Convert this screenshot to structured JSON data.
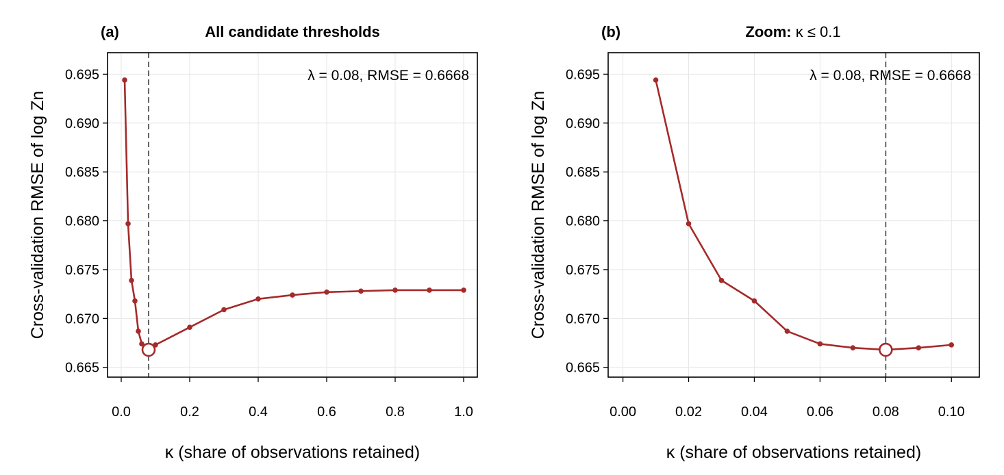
{
  "colors": {
    "series": "#a52a2a",
    "vline": "#555555"
  },
  "chart_data": [
    {
      "type": "line",
      "panel_label": "(a)",
      "title": "All candidate thresholds",
      "annotation": "λ = 0.08, RMSE = 0.6668",
      "xlabel": "κ (share of observations retained)",
      "ylabel": "Cross-validation RMSE of log Zn",
      "xlim": [
        -0.04,
        1.04
      ],
      "ylim": [
        0.664,
        0.6972
      ],
      "x_ticks": [
        0.0,
        0.2,
        0.4,
        0.6,
        0.8,
        1.0
      ],
      "x_tick_labels": [
        "0.0",
        "0.2",
        "0.4",
        "0.6",
        "0.8",
        "1.0"
      ],
      "y_ticks": [
        0.665,
        0.67,
        0.675,
        0.68,
        0.685,
        0.69,
        0.695
      ],
      "y_tick_labels": [
        "0.665",
        "0.670",
        "0.675",
        "0.680",
        "0.685",
        "0.690",
        "0.695"
      ],
      "grid": true,
      "series": [
        {
          "x": [
            0.01,
            0.02,
            0.03,
            0.04,
            0.05,
            0.06,
            0.07,
            0.08,
            0.09,
            0.1,
            0.2,
            0.3,
            0.4,
            0.5,
            0.6,
            0.7,
            0.8,
            0.9,
            1.0
          ],
          "y": [
            0.6944,
            0.6797,
            0.6739,
            0.6718,
            0.6687,
            0.6674,
            0.667,
            0.6668,
            0.667,
            0.6673,
            0.6691,
            0.6709,
            0.672,
            0.6724,
            0.6727,
            0.6728,
            0.6729,
            0.6729,
            0.6729
          ]
        }
      ],
      "selected": {
        "x": 0.08,
        "y": 0.6668
      }
    },
    {
      "type": "line",
      "panel_label": "(b)",
      "title_bold": "Zoom:",
      "title_rest": " κ ≤ 0.1",
      "annotation": "λ = 0.08, RMSE = 0.6668",
      "xlabel": "κ (share of observations retained)",
      "ylabel": "Cross-validation RMSE of log Zn",
      "xlim": [
        -0.0045,
        0.1085
      ],
      "ylim": [
        0.664,
        0.6972
      ],
      "x_ticks": [
        0.0,
        0.02,
        0.04,
        0.06,
        0.08,
        0.1
      ],
      "x_tick_labels": [
        "0.00",
        "0.02",
        "0.04",
        "0.06",
        "0.08",
        "0.10"
      ],
      "y_ticks": [
        0.665,
        0.67,
        0.675,
        0.68,
        0.685,
        0.69,
        0.695
      ],
      "y_tick_labels": [
        "0.665",
        "0.670",
        "0.675",
        "0.680",
        "0.685",
        "0.690",
        "0.695"
      ],
      "grid": true,
      "series": [
        {
          "x": [
            0.01,
            0.02,
            0.03,
            0.04,
            0.05,
            0.06,
            0.07,
            0.08,
            0.09,
            0.1
          ],
          "y": [
            0.6944,
            0.6797,
            0.6739,
            0.6718,
            0.6687,
            0.6674,
            0.667,
            0.6668,
            0.667,
            0.6673
          ]
        }
      ],
      "selected": {
        "x": 0.08,
        "y": 0.6668
      }
    }
  ]
}
